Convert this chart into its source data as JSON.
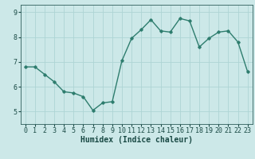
{
  "x": [
    0,
    1,
    2,
    3,
    4,
    5,
    6,
    7,
    8,
    9,
    10,
    11,
    12,
    13,
    14,
    15,
    16,
    17,
    18,
    19,
    20,
    21,
    22,
    23
  ],
  "y": [
    6.8,
    6.8,
    6.5,
    6.2,
    5.8,
    5.75,
    5.6,
    5.05,
    5.35,
    5.4,
    7.05,
    7.95,
    8.3,
    8.7,
    8.25,
    8.2,
    8.75,
    8.65,
    7.6,
    7.95,
    8.2,
    8.25,
    7.8,
    6.6
  ],
  "xlabel": "Humidex (Indice chaleur)",
  "ylim": [
    4.5,
    9.3
  ],
  "xlim": [
    -0.5,
    23.5
  ],
  "yticks": [
    5,
    6,
    7,
    8,
    9
  ],
  "xticks": [
    0,
    1,
    2,
    3,
    4,
    5,
    6,
    7,
    8,
    9,
    10,
    11,
    12,
    13,
    14,
    15,
    16,
    17,
    18,
    19,
    20,
    21,
    22,
    23
  ],
  "line_color": "#2e7d6e",
  "marker": "D",
  "marker_size": 1.8,
  "bg_color": "#cce8e8",
  "grid_color": "#aed4d4",
  "tick_color": "#1a4a45",
  "label_color": "#1a4a45",
  "axis_color": "#2e5d5a",
  "font_family": "monospace",
  "xlabel_fontsize": 7,
  "tick_fontsize": 6,
  "linewidth": 1.0
}
